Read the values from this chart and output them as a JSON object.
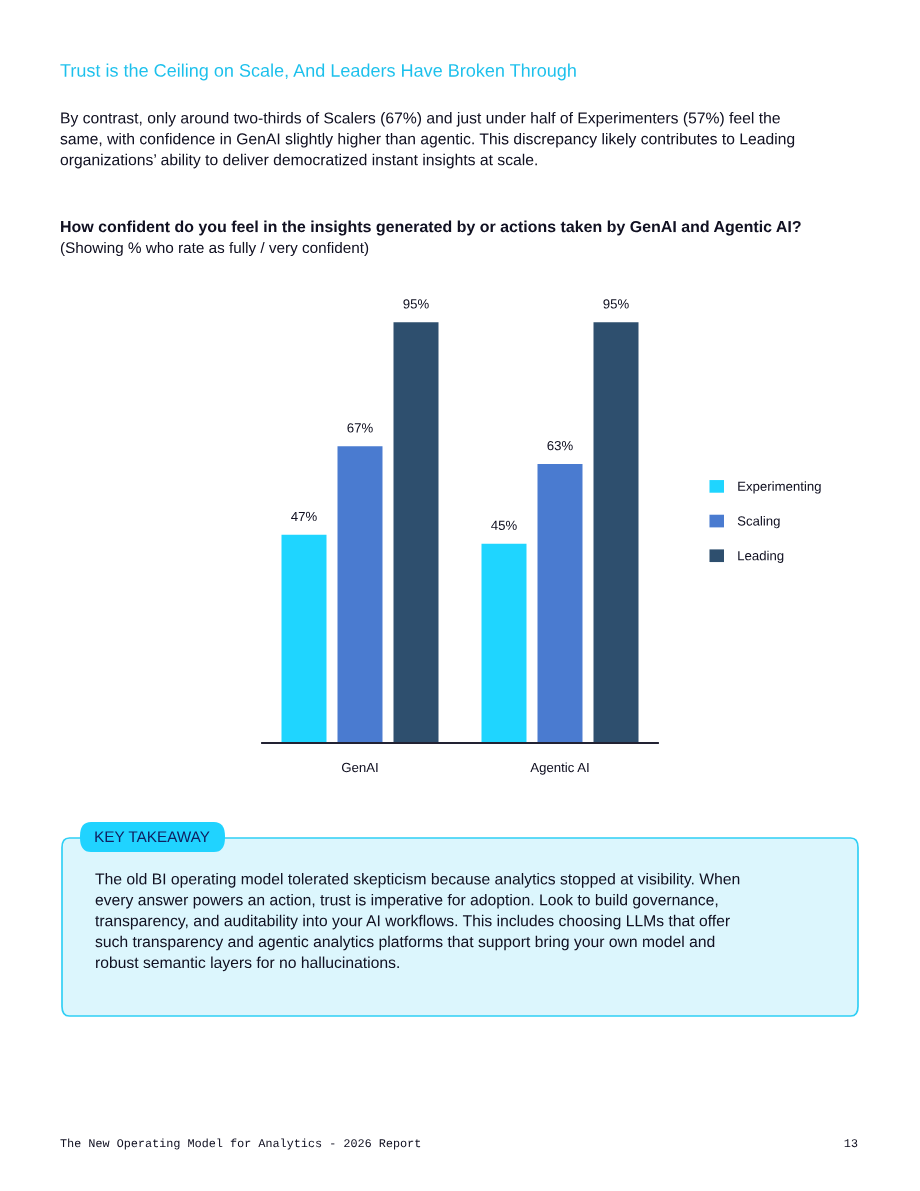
{
  "chart_data": {
    "type": "bar",
    "title": "How confident do you feel in the insights generated by or actions taken by GenAI and Agentic AI?",
    "subtitle": "(Showing % who rate as fully / very confident)",
    "categories": [
      "GenAI",
      "Agentic AI"
    ],
    "series": [
      {
        "name": "Experimenting",
        "color": "#1fd5ff",
        "values": [
          47,
          45
        ],
        "value_labels": [
          "47%",
          "45%"
        ]
      },
      {
        "name": "Scaling",
        "color": "#4a7bd0",
        "values": [
          67,
          63
        ],
        "value_labels": [
          "67%",
          "63%"
        ]
      },
      {
        "name": "Leading",
        "color": "#2e4f6e",
        "values": [
          95,
          95
        ],
        "value_labels": [
          "95%",
          "95%"
        ]
      }
    ],
    "legend": "right",
    "grid": false,
    "annotations": [
      "Trust is the Ceiling on Scale, And Leaders Have Broken Through",
      "By contrast, only around two-thirds of Scalers (67%) and just under half of Experimenters (57%) feel the\nsame, with confidence in GenAI slightly higher than agentic. This discrepancy likely contributes to Leading\norganizations’ ability to deliver democratized instant insights at scale.",
      "KEY TAKEAWAY",
      "The old BI operating model tolerated skepticism because analytics stopped at visibility. When\nevery answer powers an action, trust is imperative for adoption. Look to build governance,\ntransparency, and auditability into your AI workflows. This includes choosing LLMs that offer\nsuch transparency and agentic analytics platforms that support bring your own model and\nrobust semantic layers for no hallucinations.",
      "The New Operating Model for Analytics - 2026 Report",
      "13"
    ]
  }
}
